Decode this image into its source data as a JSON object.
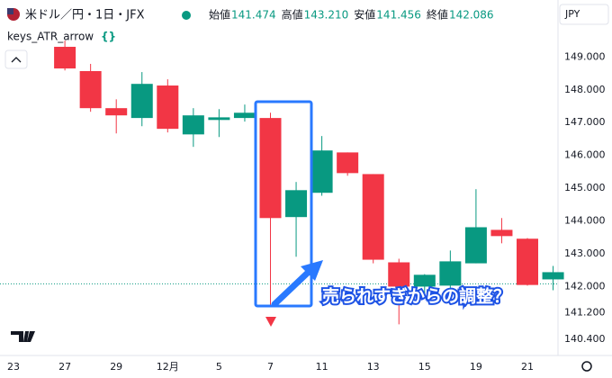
{
  "chart_data": {
    "type": "candlestick",
    "title": "米ドル／円・1日・JFX",
    "indicator": "keys_ATR_arrow",
    "annotation": "売られすぎからの調整？",
    "currency": "JPY",
    "legend": {
      "names": [
        "始値",
        "高値",
        "安値",
        "終値"
      ],
      "values": [
        141.474,
        143.21,
        141.456,
        142.086
      ],
      "value_labels": [
        "141.474",
        "143.210",
        "141.456",
        "142.086"
      ]
    },
    "categories": [
      "23",
      null,
      "27",
      null,
      "29",
      null,
      "12月",
      null,
      "5",
      null,
      "7",
      null,
      "11",
      null,
      "13",
      null,
      "15",
      null,
      "19",
      null,
      "21",
      null
    ],
    "open": [
      null,
      null,
      149.31,
      148.57,
      147.44,
      147.14,
      148.13,
      146.64,
      147.08,
      147.14,
      147.14,
      144.12,
      144.86,
      146.09,
      145.43,
      142.74,
      142.0,
      142.03,
      142.71,
      143.73,
      143.46,
      142.22
    ],
    "high": [
      null,
      null,
      149.5,
      148.79,
      147.71,
      148.54,
      148.32,
      147.44,
      147.41,
      147.55,
      147.3,
      145.19,
      146.59,
      146.09,
      145.43,
      142.85,
      142.38,
      143.1,
      144.97,
      144.09,
      143.48,
      142.63
    ],
    "low": [
      null,
      null,
      148.59,
      147.33,
      146.67,
      146.89,
      146.7,
      146.26,
      146.56,
      147.03,
      141.4,
      142.91,
      144.77,
      145.38,
      142.71,
      140.85,
      141.67,
      141.95,
      142.71,
      143.32,
      142.03,
      141.89
    ],
    "close": [
      null,
      null,
      148.65,
      147.44,
      147.22,
      148.18,
      146.81,
      147.22,
      147.16,
      147.3,
      144.09,
      144.94,
      146.15,
      145.46,
      142.82,
      142.0,
      142.36,
      142.77,
      143.81,
      143.54,
      142.05,
      142.44
    ],
    "up_color": "#089981",
    "down_color": "#f23645",
    "ylim": [
      139.9,
      150.6
    ],
    "yticks": [
      {
        "value": 149,
        "label": "149.000"
      },
      {
        "value": 148,
        "label": "148.000"
      },
      {
        "value": 147,
        "label": "147.000"
      },
      {
        "value": 146,
        "label": "146.000"
      },
      {
        "value": 145,
        "label": "145.000"
      },
      {
        "value": 144,
        "label": "144.000"
      },
      {
        "value": 143,
        "label": "143.000"
      },
      {
        "value": 142,
        "label": "142.000"
      },
      {
        "value": 141.2,
        "label": "141.200"
      },
      {
        "value": 140.4,
        "label": "140.400"
      }
    ],
    "grid": false
  }
}
